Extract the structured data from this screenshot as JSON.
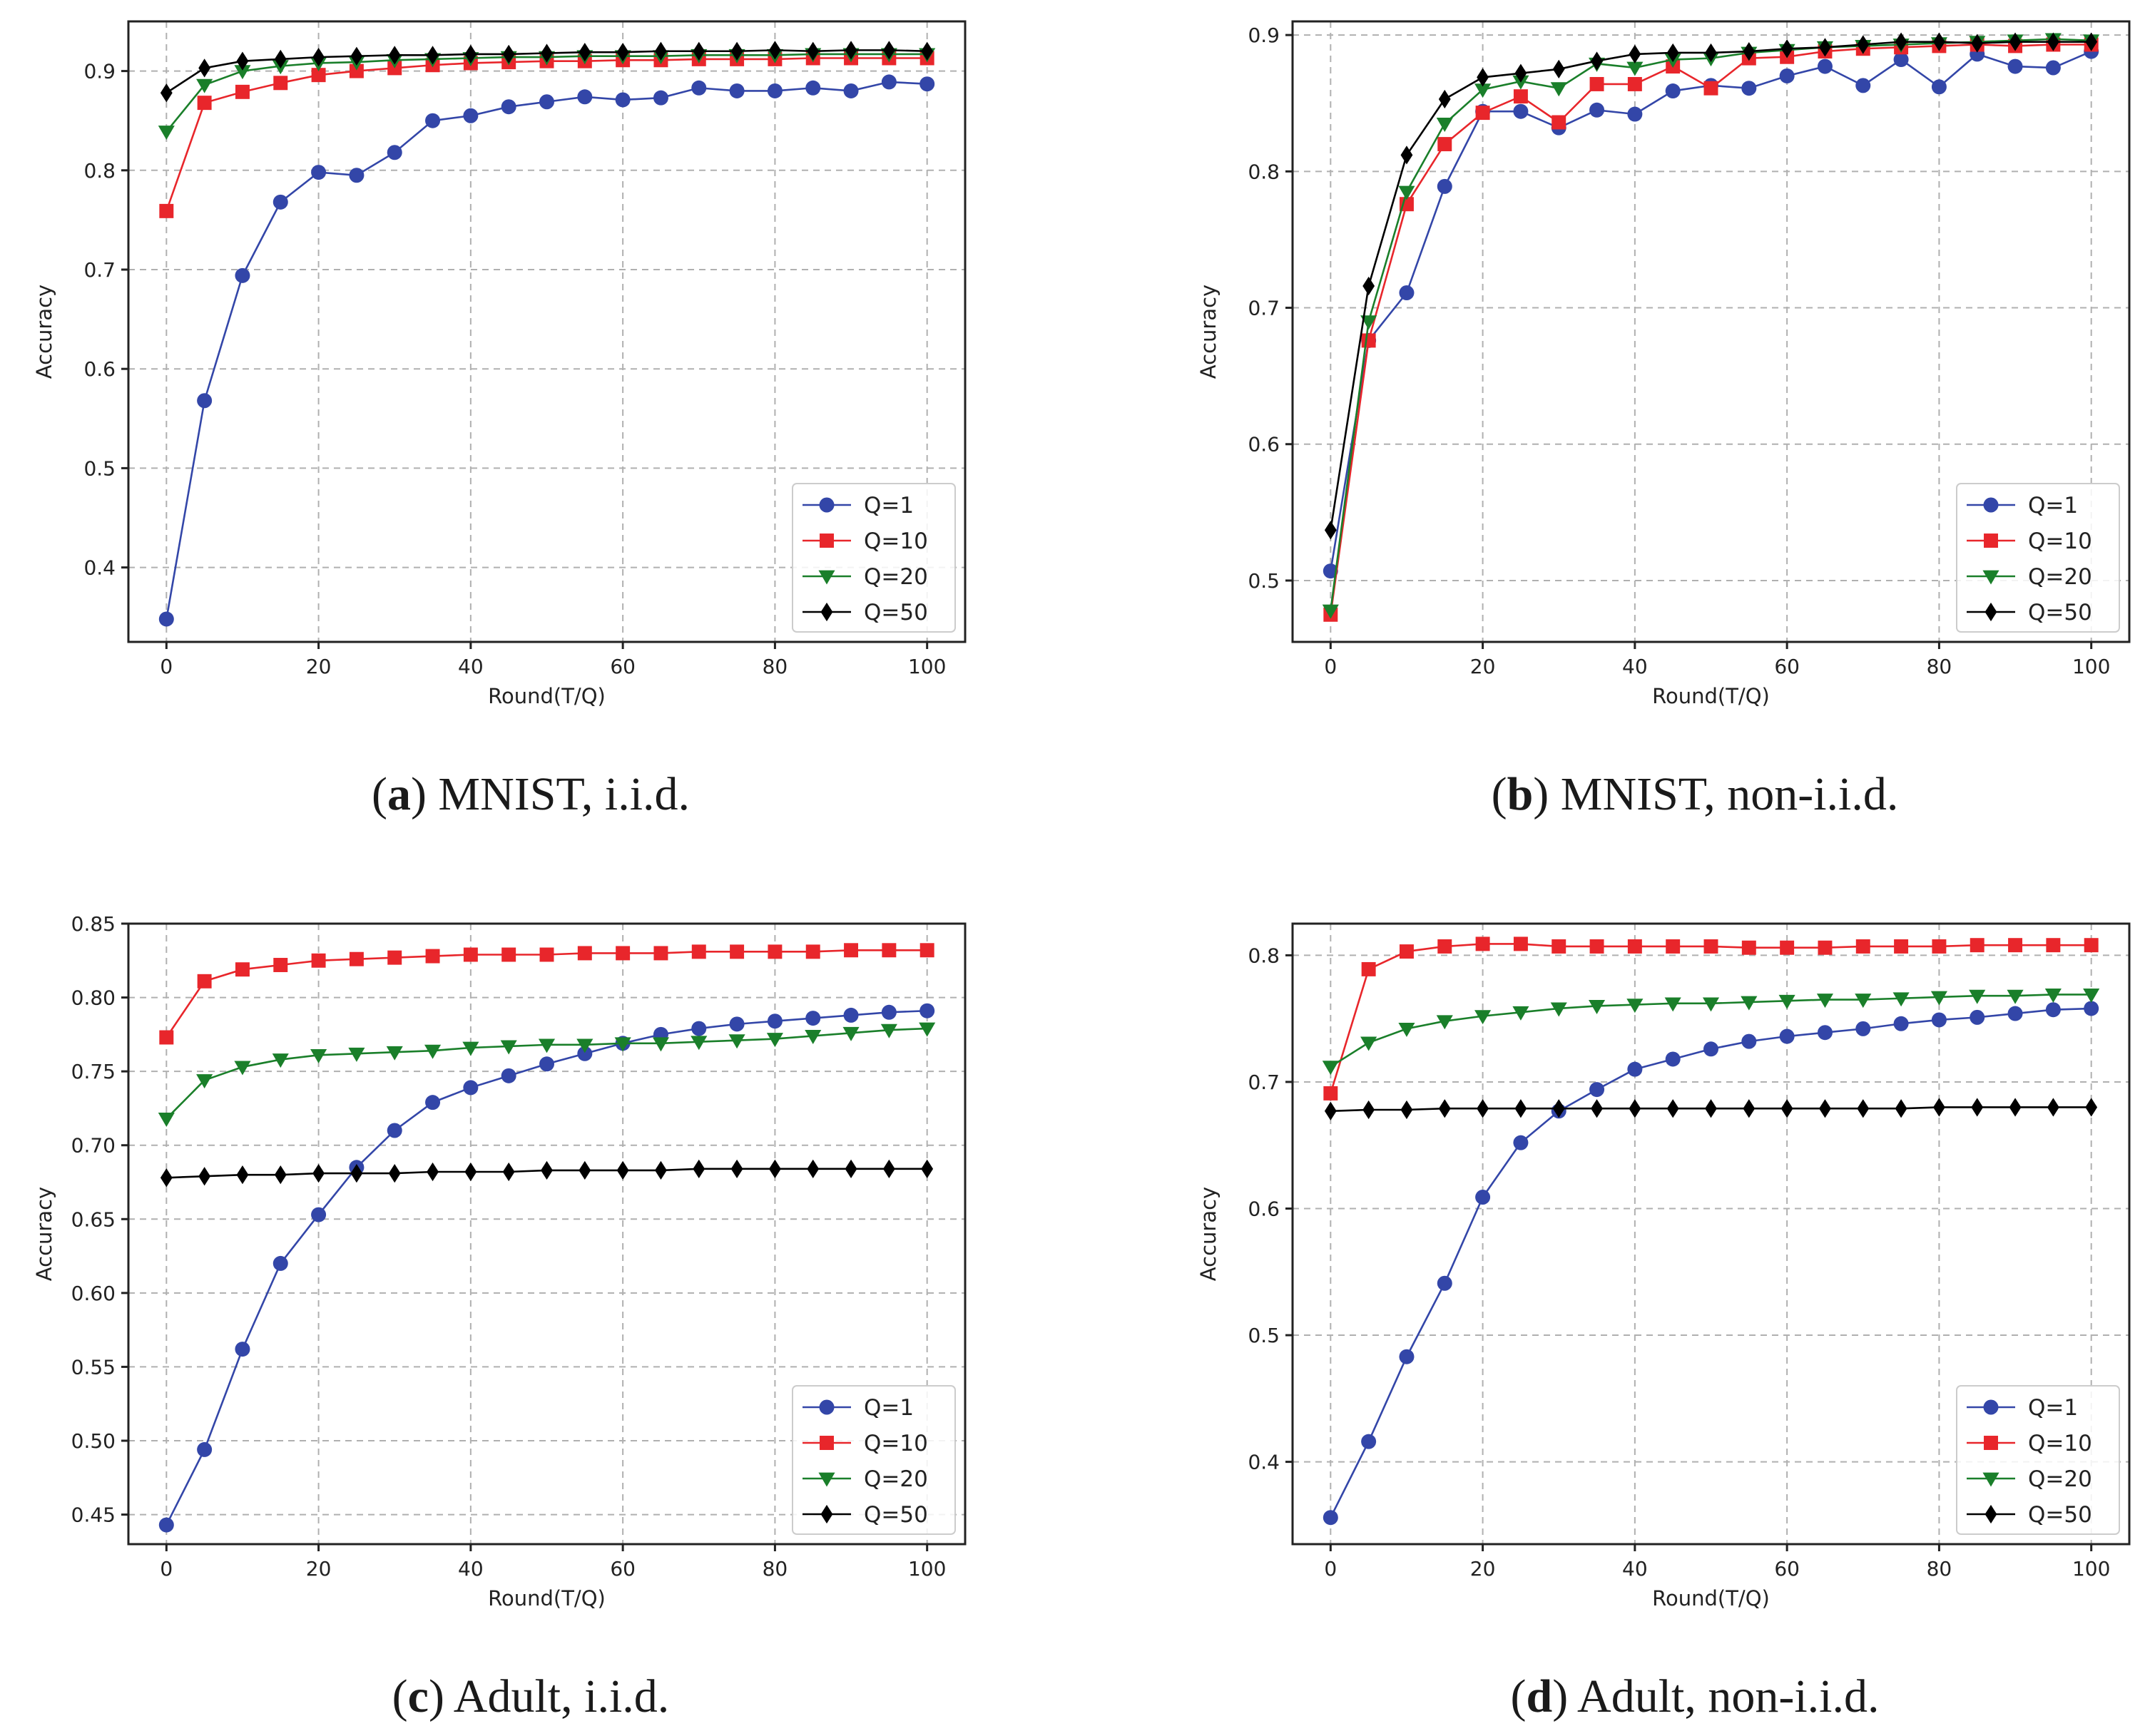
{
  "chart_data": [
    {
      "id": "a",
      "type": "line",
      "caption_letter": "a",
      "caption_text": "MNIST, i.i.d.",
      "xlabel": "Round(T/Q)",
      "ylabel": "Accuracy",
      "xlim": [
        -5,
        105
      ],
      "ylim": [
        0.325,
        0.95
      ],
      "xticks": [
        0,
        20,
        40,
        60,
        80,
        100
      ],
      "yticks": [
        0.4,
        0.5,
        0.6,
        0.7,
        0.8,
        0.9
      ],
      "ytick_decimals": 1,
      "legend_position": "lower-right",
      "x": [
        0,
        5,
        10,
        15,
        20,
        25,
        30,
        35,
        40,
        45,
        50,
        55,
        60,
        65,
        70,
        75,
        80,
        85,
        90,
        95,
        100
      ],
      "series": [
        {
          "name": "Q=1",
          "color": "#3346a8",
          "marker": "circle",
          "values": [
            0.348,
            0.568,
            0.694,
            0.768,
            0.798,
            0.795,
            0.818,
            0.85,
            0.855,
            0.864,
            0.869,
            0.874,
            0.871,
            0.873,
            0.883,
            0.88,
            0.88,
            0.883,
            0.88,
            0.889,
            0.887
          ]
        },
        {
          "name": "Q=10",
          "color": "#e8262b",
          "marker": "square",
          "values": [
            0.759,
            0.868,
            0.879,
            0.888,
            0.896,
            0.9,
            0.903,
            0.906,
            0.908,
            0.909,
            0.91,
            0.91,
            0.911,
            0.911,
            0.912,
            0.912,
            0.912,
            0.913,
            0.913,
            0.913,
            0.913
          ]
        },
        {
          "name": "Q=20",
          "color": "#1a7f2a",
          "marker": "triangle-down",
          "values": [
            0.839,
            0.886,
            0.9,
            0.905,
            0.908,
            0.909,
            0.911,
            0.912,
            0.913,
            0.914,
            0.914,
            0.915,
            0.915,
            0.915,
            0.916,
            0.916,
            0.916,
            0.917,
            0.917,
            0.917,
            0.917
          ]
        },
        {
          "name": "Q=50",
          "color": "#000000",
          "marker": "diamond",
          "values": [
            0.878,
            0.903,
            0.91,
            0.912,
            0.914,
            0.915,
            0.916,
            0.916,
            0.917,
            0.917,
            0.918,
            0.919,
            0.919,
            0.92,
            0.92,
            0.92,
            0.921,
            0.92,
            0.921,
            0.921,
            0.92
          ]
        }
      ]
    },
    {
      "id": "b",
      "type": "line",
      "caption_letter": "b",
      "caption_text": "MNIST, non-i.i.d.",
      "xlabel": "Round(T/Q)",
      "ylabel": "Accuracy",
      "xlim": [
        -5,
        105
      ],
      "ylim": [
        0.455,
        0.91
      ],
      "xticks": [
        0,
        20,
        40,
        60,
        80,
        100
      ],
      "yticks": [
        0.5,
        0.6,
        0.7,
        0.8,
        0.9
      ],
      "ytick_decimals": 1,
      "legend_position": "lower-right",
      "x": [
        0,
        5,
        10,
        15,
        20,
        25,
        30,
        35,
        40,
        45,
        50,
        55,
        60,
        65,
        70,
        75,
        80,
        85,
        90,
        95,
        100
      ],
      "series": [
        {
          "name": "Q=1",
          "color": "#3346a8",
          "marker": "circle",
          "values": [
            0.507,
            0.676,
            0.711,
            0.789,
            0.844,
            0.844,
            0.832,
            0.845,
            0.842,
            0.859,
            0.863,
            0.861,
            0.87,
            0.877,
            0.863,
            0.882,
            0.862,
            0.886,
            0.877,
            0.876,
            0.888
          ]
        },
        {
          "name": "Q=10",
          "color": "#e8262b",
          "marker": "square",
          "values": [
            0.475,
            0.676,
            0.776,
            0.82,
            0.843,
            0.855,
            0.836,
            0.864,
            0.864,
            0.877,
            0.861,
            0.883,
            0.884,
            0.888,
            0.89,
            0.891,
            0.892,
            0.893,
            0.892,
            0.893,
            0.893
          ]
        },
        {
          "name": "Q=20",
          "color": "#1a7f2a",
          "marker": "triangle-down",
          "values": [
            0.478,
            0.69,
            0.785,
            0.835,
            0.86,
            0.866,
            0.861,
            0.879,
            0.876,
            0.882,
            0.883,
            0.887,
            0.889,
            0.891,
            0.892,
            0.893,
            0.894,
            0.895,
            0.896,
            0.897,
            0.896
          ]
        },
        {
          "name": "Q=50",
          "color": "#000000",
          "marker": "diamond",
          "values": [
            0.537,
            0.716,
            0.812,
            0.853,
            0.869,
            0.872,
            0.875,
            0.881,
            0.886,
            0.887,
            0.887,
            0.888,
            0.89,
            0.891,
            0.893,
            0.895,
            0.895,
            0.894,
            0.895,
            0.895,
            0.895
          ]
        }
      ]
    },
    {
      "id": "c",
      "type": "line",
      "caption_letter": "c",
      "caption_text": "Adult, i.i.d.",
      "xlabel": "Round(T/Q)",
      "ylabel": "Accuracy",
      "xlim": [
        -5,
        105
      ],
      "ylim": [
        0.43,
        0.85
      ],
      "xticks": [
        0,
        20,
        40,
        60,
        80,
        100
      ],
      "yticks": [
        0.45,
        0.5,
        0.55,
        0.6,
        0.65,
        0.7,
        0.75,
        0.8,
        0.85
      ],
      "ytick_decimals": 2,
      "legend_position": "lower-right",
      "x": [
        0,
        5,
        10,
        15,
        20,
        25,
        30,
        35,
        40,
        45,
        50,
        55,
        60,
        65,
        70,
        75,
        80,
        85,
        90,
        95,
        100
      ],
      "series": [
        {
          "name": "Q=1",
          "color": "#3346a8",
          "marker": "circle",
          "values": [
            0.443,
            0.494,
            0.562,
            0.62,
            0.653,
            0.685,
            0.71,
            0.729,
            0.739,
            0.747,
            0.755,
            0.762,
            0.769,
            0.775,
            0.779,
            0.782,
            0.784,
            0.786,
            0.788,
            0.79,
            0.791
          ]
        },
        {
          "name": "Q=10",
          "color": "#e8262b",
          "marker": "square",
          "values": [
            0.773,
            0.811,
            0.819,
            0.822,
            0.825,
            0.826,
            0.827,
            0.828,
            0.829,
            0.829,
            0.829,
            0.83,
            0.83,
            0.83,
            0.831,
            0.831,
            0.831,
            0.831,
            0.832,
            0.832,
            0.832
          ]
        },
        {
          "name": "Q=20",
          "color": "#1a7f2a",
          "marker": "triangle-down",
          "values": [
            0.718,
            0.744,
            0.753,
            0.758,
            0.761,
            0.762,
            0.763,
            0.764,
            0.766,
            0.767,
            0.768,
            0.768,
            0.769,
            0.769,
            0.77,
            0.771,
            0.772,
            0.774,
            0.776,
            0.778,
            0.779
          ]
        },
        {
          "name": "Q=50",
          "color": "#000000",
          "marker": "diamond",
          "values": [
            0.678,
            0.679,
            0.68,
            0.68,
            0.681,
            0.681,
            0.681,
            0.682,
            0.682,
            0.682,
            0.683,
            0.683,
            0.683,
            0.683,
            0.684,
            0.684,
            0.684,
            0.684,
            0.684,
            0.684,
            0.684
          ]
        }
      ]
    },
    {
      "id": "d",
      "type": "line",
      "caption_letter": "d",
      "caption_text": "Adult, non-i.i.d.",
      "xlabel": "Round(T/Q)",
      "ylabel": "Accuracy",
      "xlim": [
        -5,
        105
      ],
      "ylim": [
        0.335,
        0.825
      ],
      "xticks": [
        0,
        20,
        40,
        60,
        80,
        100
      ],
      "yticks": [
        0.4,
        0.5,
        0.6,
        0.7,
        0.8
      ],
      "ytick_decimals": 1,
      "legend_position": "lower-right",
      "x": [
        0,
        5,
        10,
        15,
        20,
        25,
        30,
        35,
        40,
        45,
        50,
        55,
        60,
        65,
        70,
        75,
        80,
        85,
        90,
        95,
        100
      ],
      "series": [
        {
          "name": "Q=1",
          "color": "#3346a8",
          "marker": "circle",
          "values": [
            0.356,
            0.416,
            0.483,
            0.541,
            0.609,
            0.652,
            0.677,
            0.694,
            0.71,
            0.718,
            0.726,
            0.732,
            0.736,
            0.739,
            0.742,
            0.746,
            0.749,
            0.751,
            0.754,
            0.757,
            0.758
          ]
        },
        {
          "name": "Q=10",
          "color": "#e8262b",
          "marker": "square",
          "values": [
            0.691,
            0.789,
            0.803,
            0.807,
            0.809,
            0.809,
            0.807,
            0.807,
            0.807,
            0.807,
            0.807,
            0.806,
            0.806,
            0.806,
            0.807,
            0.807,
            0.807,
            0.808,
            0.808,
            0.808,
            0.808
          ]
        },
        {
          "name": "Q=20",
          "color": "#1a7f2a",
          "marker": "triangle-down",
          "values": [
            0.712,
            0.731,
            0.742,
            0.748,
            0.752,
            0.755,
            0.758,
            0.76,
            0.761,
            0.762,
            0.762,
            0.763,
            0.764,
            0.765,
            0.765,
            0.766,
            0.767,
            0.768,
            0.768,
            0.769,
            0.769
          ]
        },
        {
          "name": "Q=50",
          "color": "#000000",
          "marker": "diamond",
          "values": [
            0.677,
            0.678,
            0.678,
            0.679,
            0.679,
            0.679,
            0.679,
            0.679,
            0.679,
            0.679,
            0.679,
            0.679,
            0.679,
            0.679,
            0.679,
            0.679,
            0.68,
            0.68,
            0.68,
            0.68,
            0.68
          ]
        }
      ]
    }
  ]
}
